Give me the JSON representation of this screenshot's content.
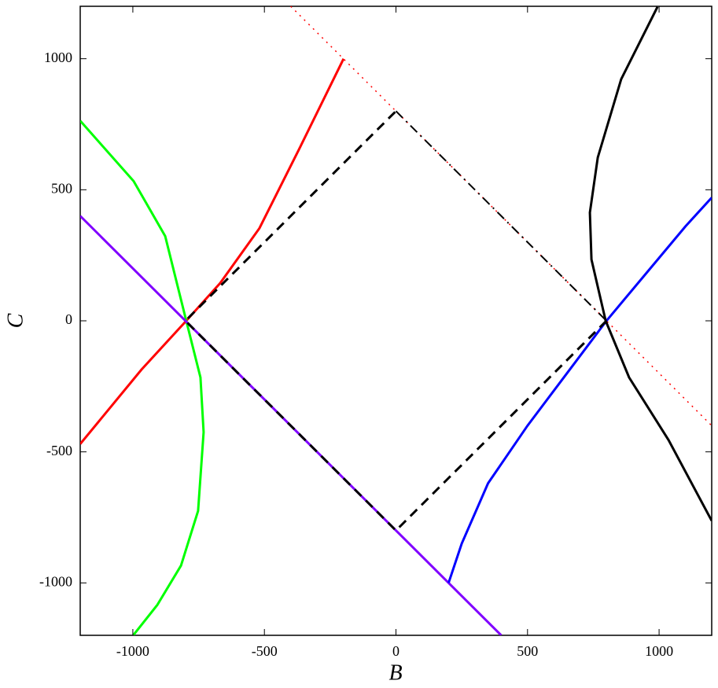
{
  "chart_data": {
    "type": "line",
    "x_label": "B",
    "y_label": "C",
    "xlim": [
      -1200,
      1200
    ],
    "ylim": [
      -1200,
      1200
    ],
    "xticks": [
      -1000,
      -500,
      0,
      500,
      1000
    ],
    "yticks": [
      -1000,
      -500,
      0,
      500,
      1000
    ],
    "series": [
      {
        "color": "#ff0000",
        "dash": "dotted",
        "width": 1.5,
        "x": [
          -400,
          1200
        ],
        "values": [
          1200,
          -400
        ]
      },
      {
        "color": "#ff0000",
        "dash": "solid",
        "width": 3,
        "x": [
          -1200,
          -967,
          -797,
          -668,
          -519,
          -369,
          -199
        ],
        "values": [
          -470,
          -186,
          0,
          144,
          353,
          653,
          1000
        ]
      },
      {
        "color": "#00ff00",
        "dash": "solid",
        "width": 3,
        "x": [
          -1200,
          -997,
          -877,
          -797,
          -743,
          -731,
          -752,
          -817,
          -907,
          -997
        ],
        "values": [
          763,
          533,
          323,
          0,
          -216,
          -425,
          -725,
          -934,
          -1084,
          -1198
        ]
      },
      {
        "color": "#8000ff",
        "dash": "solid",
        "width": 3,
        "x": [
          -1200,
          400
        ],
        "values": [
          400,
          -1200
        ]
      },
      {
        "color": "#0000ff",
        "dash": "solid",
        "width": 3,
        "x": [
          200,
          250,
          350,
          500,
          650,
          800,
          950,
          1100,
          1200
        ],
        "values": [
          -1000,
          -850,
          -620,
          -400,
          -200,
          0,
          180,
          360,
          470
        ]
      },
      {
        "color": "#000000",
        "dash": "solid",
        "width": 3,
        "x": [
          994,
          856,
          767,
          737,
          743,
          797,
          886,
          1036,
          1200
        ],
        "values": [
          1198,
          922,
          623,
          413,
          234,
          0,
          -216,
          -455,
          -763
        ]
      },
      {
        "color": "#000000",
        "dash": "dashed",
        "width": 3,
        "x": [
          800,
          0,
          -800,
          0
        ],
        "values": [
          0,
          -800,
          0,
          800
        ]
      },
      {
        "color": "#000000",
        "dash": "dashdot",
        "width": 2,
        "x": [
          0,
          800
        ],
        "values": [
          800,
          0
        ]
      }
    ]
  }
}
